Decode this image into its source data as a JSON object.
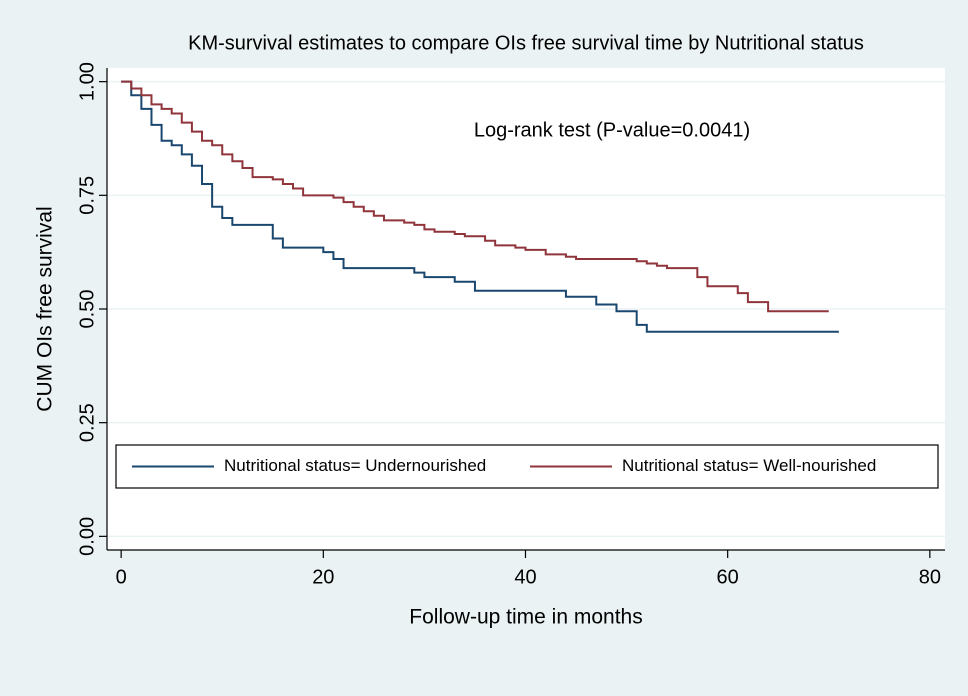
{
  "chart_data": {
    "type": "line",
    "step": true,
    "title": "KM-survival estimates to compare OIs free survival time by Nutritional status",
    "xlabel": "Follow-up time in months",
    "ylabel": "CUM OIs free survival",
    "annotation": "Log-rank test (P-value=0.0041)",
    "annotation_color": "#0000cc",
    "xlim": [
      -1.4,
      81.5
    ],
    "ylim": [
      -0.03,
      1.03
    ],
    "xticks": [
      0,
      20,
      40,
      60,
      80
    ],
    "yticks": [
      {
        "value": 0,
        "label": "0.00"
      },
      {
        "value": 0.25,
        "label": "0.25"
      },
      {
        "value": 0.5,
        "label": "0.50"
      },
      {
        "value": 0.75,
        "label": "0.75"
      },
      {
        "value": 1,
        "label": "1.00"
      }
    ],
    "grid": true,
    "legend": "bottom",
    "series": [
      {
        "name": "Nutritional status= Undernourished",
        "color": "#1a476f",
        "x": [
          0,
          1,
          2,
          3,
          4,
          5,
          6,
          7,
          8,
          9,
          10,
          11,
          15,
          16,
          20,
          21,
          22,
          29,
          30,
          33,
          35,
          44,
          47,
          49,
          51,
          52,
          71
        ],
        "values": [
          1.0,
          0.97,
          0.94,
          0.905,
          0.87,
          0.86,
          0.84,
          0.815,
          0.775,
          0.725,
          0.7,
          0.685,
          0.655,
          0.635,
          0.625,
          0.61,
          0.59,
          0.58,
          0.57,
          0.56,
          0.54,
          0.527,
          0.51,
          0.495,
          0.465,
          0.45,
          0.45
        ]
      },
      {
        "name": "Nutritional status= Well-nourished",
        "color": "#90353b",
        "x": [
          0,
          1,
          2,
          3,
          4,
          5,
          6,
          7,
          8,
          9,
          10,
          11,
          12,
          13,
          15,
          16,
          17,
          18,
          21,
          22,
          23,
          24,
          25,
          26,
          28,
          29,
          30,
          31,
          33,
          34,
          36,
          37,
          39,
          40,
          42,
          44,
          45,
          51,
          52,
          53,
          54,
          57,
          58,
          61,
          62,
          64,
          70
        ],
        "values": [
          1.0,
          0.985,
          0.97,
          0.95,
          0.94,
          0.93,
          0.91,
          0.89,
          0.87,
          0.86,
          0.84,
          0.825,
          0.81,
          0.79,
          0.785,
          0.775,
          0.765,
          0.75,
          0.745,
          0.735,
          0.725,
          0.715,
          0.705,
          0.695,
          0.69,
          0.685,
          0.675,
          0.67,
          0.665,
          0.66,
          0.65,
          0.64,
          0.635,
          0.63,
          0.62,
          0.615,
          0.61,
          0.605,
          0.6,
          0.595,
          0.59,
          0.57,
          0.55,
          0.535,
          0.515,
          0.495,
          0.495
        ]
      }
    ]
  }
}
